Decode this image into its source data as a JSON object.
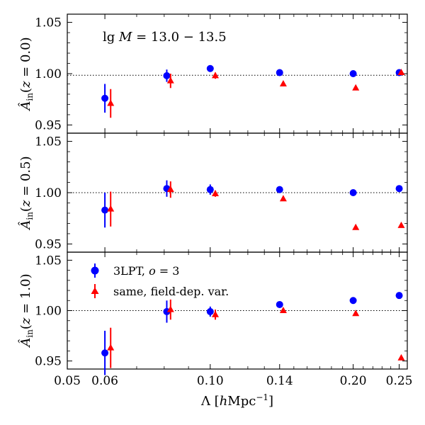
{
  "chart_data": {
    "type": "scatter",
    "x_axis": {
      "label": "Λ [hMpc⁻¹]",
      "scale": "log",
      "lim": [
        0.05,
        0.26
      ],
      "ticks": [
        0.05,
        0.06,
        0.1,
        0.14,
        0.2,
        0.25
      ],
      "tick_labels": [
        "0.05",
        "0.06",
        "0.10",
        "0.14",
        "0.20",
        "0.25"
      ]
    },
    "y_axis": {
      "lim": [
        0.942,
        1.058
      ],
      "ticks": [
        0.95,
        1.0,
        1.05
      ],
      "tick_labels": [
        "0.95",
        "1.00",
        "1.05"
      ],
      "reference_line": 1.0
    },
    "series_styles": [
      {
        "name": "3LPT, o = 3",
        "color": "#0000ff",
        "marker": "circle"
      },
      {
        "name": "same, field-dep. var.",
        "color": "#ff0000",
        "marker": "triangle"
      }
    ],
    "panels": [
      {
        "ylabel": "Â_in(z = 0.0)",
        "annotation": "lg M = 13.0 − 13.5",
        "series": [
          {
            "name": "3LPT, o = 3",
            "x": [
              0.06,
              0.081,
              0.1,
              0.14,
              0.2,
              0.25
            ],
            "y": [
              0.976,
              0.998,
              1.005,
              1.001,
              1.0,
              1.001
            ],
            "err": [
              0.014,
              0.006,
              0.003,
              0.001,
              0.0,
              0.0
            ]
          },
          {
            "name": "same, field-dep. var.",
            "x": [
              0.0617,
              0.0825,
              0.1025,
              0.1425,
              0.2025,
              0.2525
            ],
            "y": [
              0.971,
              0.993,
              0.998,
              0.99,
              0.986,
              1.001
            ],
            "err": [
              0.014,
              0.007,
              0.003,
              0.0,
              0.0,
              0.0
            ]
          }
        ]
      },
      {
        "ylabel": "Â_in(z = 0.5)",
        "annotation": "",
        "series": [
          {
            "name": "3LPT, o = 3",
            "x": [
              0.06,
              0.081,
              0.1,
              0.14,
              0.2,
              0.25
            ],
            "y": [
              0.983,
              1.004,
              1.003,
              1.003,
              1.0,
              1.004
            ],
            "err": [
              0.017,
              0.008,
              0.005,
              0.0,
              0.0,
              0.0
            ]
          },
          {
            "name": "same, field-dep. var.",
            "x": [
              0.0617,
              0.0825,
              0.1025,
              0.1425,
              0.2025,
              0.2525
            ],
            "y": [
              0.984,
              1.003,
              0.999,
              0.994,
              0.966,
              0.968
            ],
            "err": [
              0.017,
              0.008,
              0.003,
              0.0,
              0.0,
              0.0
            ]
          }
        ]
      },
      {
        "ylabel": "Â_in(z = 1.0)",
        "annotation": "",
        "series": [
          {
            "name": "3LPT, o = 3",
            "x": [
              0.06,
              0.081,
              0.1,
              0.14,
              0.2,
              0.25
            ],
            "y": [
              0.958,
              0.999,
              0.999,
              1.006,
              1.01,
              1.015
            ],
            "err": [
              0.022,
              0.011,
              0.005,
              0.0,
              0.0,
              0.0
            ]
          },
          {
            "name": "same, field-dep. var.",
            "x": [
              0.0617,
              0.0825,
              0.1025,
              0.1425,
              0.2025,
              0.2525
            ],
            "y": [
              0.963,
              1.001,
              0.996,
              1.0,
              0.997,
              0.953
            ],
            "err": [
              0.02,
              0.01,
              0.005,
              0.0,
              0.0,
              0.0
            ]
          }
        ]
      }
    ],
    "legend": {
      "panel": 3,
      "entries": [
        "3LPT, o = 3",
        "same, field-dep. var."
      ],
      "position": "top-left"
    }
  }
}
